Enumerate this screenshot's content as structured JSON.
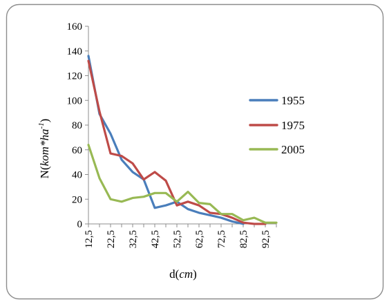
{
  "chart_data": {
    "type": "line",
    "title": "",
    "xlabel_parts": [
      "d(",
      "cm",
      ")"
    ],
    "ylabel_parts": [
      "N(",
      "kom*ha",
      "-1",
      ")"
    ],
    "categories": [
      "12,5",
      "17,5",
      "22,5",
      "27,5",
      "32,5",
      "37,5",
      "42,5",
      "47,5",
      "52,5",
      "57,5",
      "62,5",
      "67,5",
      "72,5",
      "77,5",
      "82,5",
      "87,5",
      "92,5",
      "97,5"
    ],
    "xtick_labels": [
      "12,5",
      "22,5",
      "32,5",
      "42,5",
      "52,5",
      "62,5",
      "72,5",
      "82,5",
      "92,5"
    ],
    "yticks": [
      "0",
      "20",
      "40",
      "60",
      "80",
      "100",
      "120",
      "140",
      "160"
    ],
    "ylim": [
      0,
      160
    ],
    "grid": false,
    "legend_position": "right",
    "series": [
      {
        "name": "1955",
        "color": "#4a7ebb",
        "values": [
          136,
          89,
          73,
          52,
          42,
          36,
          13,
          15,
          18,
          12,
          9,
          7,
          5,
          2,
          0,
          null,
          null,
          null
        ]
      },
      {
        "name": "1975",
        "color": "#be4b48",
        "values": [
          132,
          91,
          57,
          55,
          49,
          36,
          42,
          35,
          15,
          18,
          15,
          9,
          8,
          5,
          1,
          0,
          0,
          null
        ]
      },
      {
        "name": "2005",
        "color": "#98b954",
        "values": [
          64,
          37,
          20,
          18,
          21,
          22,
          25,
          25,
          18,
          26,
          17,
          16,
          8,
          8,
          3,
          5,
          1,
          1
        ]
      }
    ]
  }
}
